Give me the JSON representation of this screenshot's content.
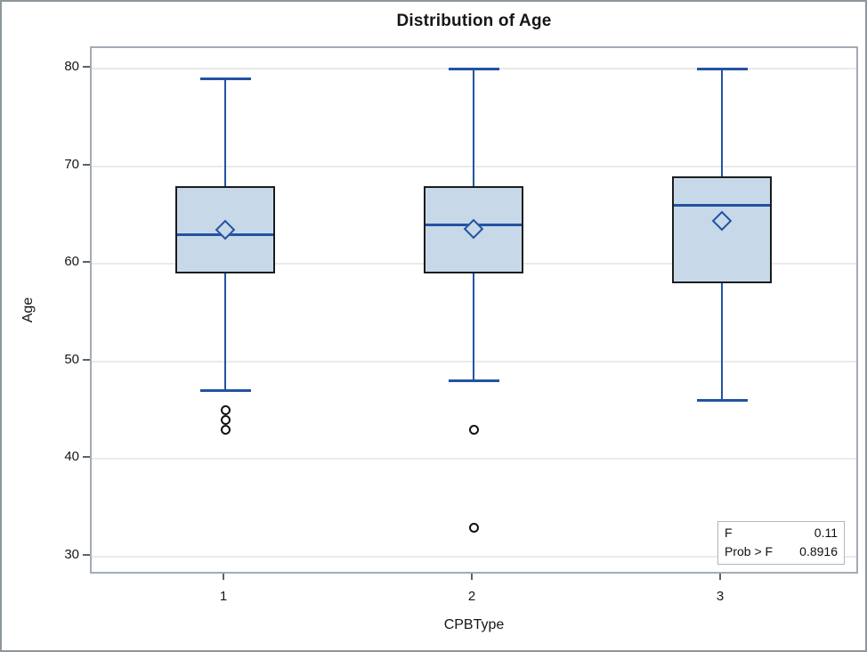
{
  "chart_data": {
    "type": "box",
    "title": "Distribution of Age",
    "xlabel": "CPBType",
    "ylabel": "Age",
    "categories": [
      "1",
      "2",
      "3"
    ],
    "yticks": [
      30,
      40,
      50,
      60,
      70,
      80
    ],
    "ylim": [
      28.1,
      82.1
    ],
    "grid": true,
    "legend": "none",
    "series": [
      {
        "category": "1",
        "whisker_low": 47,
        "q1": 59,
        "median": 63,
        "q3": 68,
        "whisker_high": 79,
        "mean": 63.5,
        "outliers": [
          45,
          44,
          43
        ]
      },
      {
        "category": "2",
        "whisker_low": 48,
        "q1": 59,
        "median": 64,
        "q3": 68,
        "whisker_high": 80,
        "mean": 63.6,
        "outliers": [
          43,
          33
        ]
      },
      {
        "category": "3",
        "whisker_low": 46,
        "q1": 58,
        "median": 66,
        "q3": 69,
        "whisker_high": 80,
        "mean": 64.4,
        "outliers": []
      }
    ],
    "colors": {
      "box_fill": "#c7d9e8",
      "box_border": "#1c1c1c",
      "line_blue": "#2253a2",
      "grid": "#eaeaea",
      "frame": "#a3acb3",
      "outlier_stroke": "#111111"
    }
  },
  "inset": {
    "rows": [
      {
        "label": "F",
        "value": "0.11"
      },
      {
        "label": "Prob > F",
        "value": "0.8916"
      }
    ]
  }
}
